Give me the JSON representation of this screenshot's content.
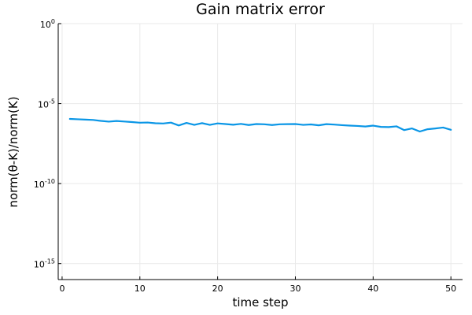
{
  "chart_data": {
    "type": "line",
    "title": "Gain matrix error",
    "xlabel": "time step",
    "ylabel": "norm(θ-K)/norm(K)",
    "xlim": [
      -0.5,
      51.5
    ],
    "ylim": [
      -16,
      0
    ],
    "yscale": "log10",
    "xticks": [
      0,
      10,
      20,
      30,
      40,
      50
    ],
    "yticks": [
      {
        "exp": 0,
        "base": "10",
        "power": "0"
      },
      {
        "exp": -5,
        "base": "10",
        "power": "-5"
      },
      {
        "exp": -10,
        "base": "10",
        "power": "-10"
      },
      {
        "exp": -15,
        "base": "10",
        "power": "-15"
      }
    ],
    "grid": true,
    "legend": "none",
    "series": [
      {
        "color": "#0a96e6",
        "x": [
          1,
          2,
          3,
          4,
          5,
          6,
          7,
          8,
          9,
          10,
          11,
          12,
          13,
          14,
          15,
          16,
          17,
          18,
          19,
          20,
          21,
          22,
          23,
          24,
          25,
          26,
          27,
          28,
          29,
          30,
          31,
          32,
          33,
          34,
          35,
          36,
          37,
          38,
          39,
          40,
          41,
          42,
          43,
          44,
          45,
          46,
          47,
          48,
          49,
          50
        ],
        "y": [
          1.1e-06,
          1.05e-06,
          1e-06,
          9.5e-07,
          8.3e-07,
          7.5e-07,
          8.2e-07,
          7.6e-07,
          7e-07,
          6.4e-07,
          6.6e-07,
          5.9e-07,
          5.7e-07,
          6.5e-07,
          4.3e-07,
          6.2e-07,
          4.7e-07,
          6e-07,
          4.7e-07,
          5.8e-07,
          5.3e-07,
          4.8e-07,
          5.4e-07,
          4.6e-07,
          5.3e-07,
          5.1e-07,
          4.6e-07,
          5.1e-07,
          5.2e-07,
          5.3e-07,
          4.7e-07,
          5e-07,
          4.4e-07,
          5.2e-07,
          4.9e-07,
          4.5e-07,
          4.2e-07,
          4e-07,
          3.7e-07,
          4.2e-07,
          3.5e-07,
          3.4e-07,
          3.8e-07,
          2.2e-07,
          2.8e-07,
          1.8e-07,
          2.5e-07,
          2.8e-07,
          3.2e-07,
          2.3e-07
        ]
      }
    ]
  }
}
